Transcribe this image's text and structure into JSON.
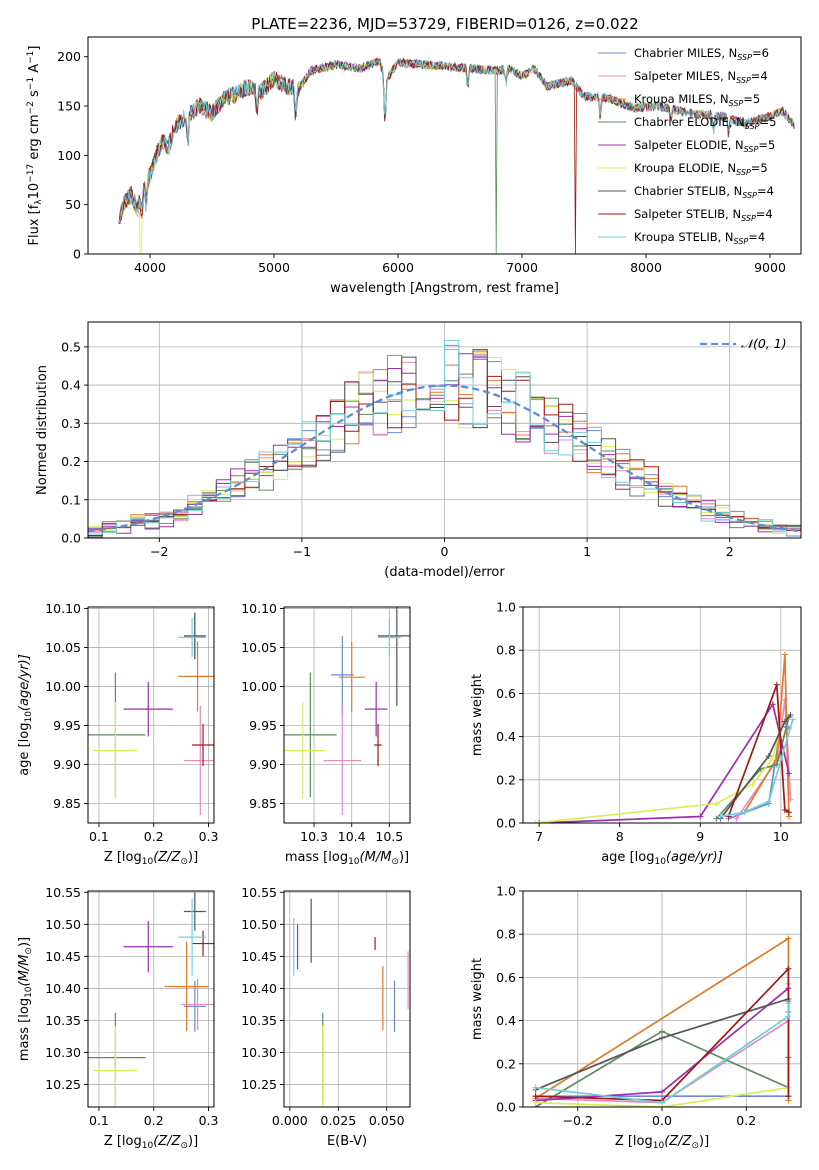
{
  "figure": {
    "title": "PLATE=2236, MJD=53729, FIBERID=0126, z=0.022"
  },
  "series_styles": [
    {
      "name": "Chabrier MILES",
      "n_ssp": "6",
      "color": "#6a8ad6"
    },
    {
      "name": "Salpeter MILES",
      "n_ssp": "4",
      "color": "#e889c0"
    },
    {
      "name": "Kroupa MILES",
      "n_ssp": "5",
      "color": "#e07b2a"
    },
    {
      "name": "Chabrier ELODIE",
      "n_ssp": "5",
      "color": "#5e8a60"
    },
    {
      "name": "Salpeter ELODIE",
      "n_ssp": "5",
      "color": "#9b2fb0"
    },
    {
      "name": "Kroupa ELODIE",
      "n_ssp": "5",
      "color": "#d8ee58"
    },
    {
      "name": "Chabrier STELIB",
      "n_ssp": "4",
      "color": "#555555"
    },
    {
      "name": "Salpeter STELIB",
      "n_ssp": "4",
      "color": "#a01818"
    },
    {
      "name": "Kroupa STELIB",
      "n_ssp": "4",
      "color": "#6fd0d8"
    }
  ],
  "chart_data": [
    {
      "id": "spectrum",
      "type": "line",
      "xlabel": "wavelength [Angstrom, rest frame]",
      "ylabel": "Flux [f",
      "ylabel_sub": "λ",
      "ylabel_mid": "10",
      "ylabel_sup1": "−17",
      "ylabel_end": " erg cm",
      "ylabel_sup2": "−2",
      "ylabel_s": " s",
      "ylabel_sup3": "−1",
      "ylabel_a": " A",
      "ylabel_sup4": "−1",
      "ylabel_close": "]",
      "xlim": [
        3500,
        9250
      ],
      "ylim": [
        0,
        220
      ],
      "xticks": [
        4000,
        5000,
        6000,
        7000,
        8000,
        9000
      ],
      "yticks": [
        0,
        50,
        100,
        150,
        200
      ],
      "anchors": [
        [
          3750,
          35
        ],
        [
          3800,
          55
        ],
        [
          3850,
          60
        ],
        [
          3900,
          45
        ],
        [
          3950,
          70
        ],
        [
          4000,
          80
        ],
        [
          4050,
          100
        ],
        [
          4100,
          115
        ],
        [
          4150,
          108
        ],
        [
          4200,
          130
        ],
        [
          4300,
          140
        ],
        [
          4400,
          150
        ],
        [
          4500,
          142
        ],
        [
          4600,
          158
        ],
        [
          4700,
          163
        ],
        [
          4800,
          170
        ],
        [
          4900,
          165
        ],
        [
          5000,
          178
        ],
        [
          5100,
          170
        ],
        [
          5200,
          168
        ],
        [
          5300,
          186
        ],
        [
          5500,
          192
        ],
        [
          5700,
          188
        ],
        [
          5850,
          196
        ],
        [
          5900,
          176
        ],
        [
          6000,
          194
        ],
        [
          6200,
          192
        ],
        [
          6400,
          190
        ],
        [
          6600,
          188
        ],
        [
          6800,
          186
        ],
        [
          6900,
          188
        ],
        [
          7000,
          180
        ],
        [
          7100,
          188
        ],
        [
          7200,
          170
        ],
        [
          7400,
          176
        ],
        [
          7500,
          160
        ],
        [
          7700,
          158
        ],
        [
          7900,
          148
        ],
        [
          8100,
          150
        ],
        [
          8400,
          142
        ],
        [
          8600,
          140
        ],
        [
          8800,
          132
        ],
        [
          9000,
          140
        ],
        [
          9100,
          145
        ],
        [
          9200,
          130
        ]
      ],
      "dips": [
        [
          3935,
          22
        ],
        [
          3970,
          25
        ],
        [
          4305,
          25
        ],
        [
          4862,
          20
        ],
        [
          5175,
          30
        ],
        [
          5895,
          45
        ],
        [
          6563,
          18
        ],
        [
          6870,
          15
        ],
        [
          7630,
          18
        ],
        [
          8200,
          10
        ],
        [
          8545,
          15
        ],
        [
          8665,
          15
        ]
      ],
      "drops": [
        [
          3925,
          5
        ],
        [
          6790,
          3
        ],
        [
          7430,
          7
        ]
      ]
    },
    {
      "id": "residuals",
      "type": "step-histogram",
      "xlabel": "(data-model)/error",
      "ylabel": "Normed distribution",
      "legend": "𝒩(0, 1)",
      "xlim": [
        -2.5,
        2.5
      ],
      "ylim": [
        0,
        0.565
      ],
      "xticks": [
        -2,
        -1,
        0,
        1,
        2
      ],
      "yticks": [
        0.0,
        0.1,
        0.2,
        0.3,
        0.4,
        0.5
      ],
      "bin_width": 0.1
    },
    {
      "id": "age-vs-Z",
      "type": "errorbar",
      "xlabel": "Z [log",
      "xlabel_sub": "10",
      "xlabel_end": "(Z/Z",
      "xlabel_sun": "⊙",
      "xlabel_close": ")]",
      "ylabel": "age  [log",
      "ylabel_sub": "10",
      "ylabel_end": "(age/yr)]",
      "xlim": [
        0.08,
        0.31
      ],
      "ylim": [
        9.825,
        10.102
      ],
      "xticks": [
        0.1,
        0.2,
        0.3
      ],
      "yticks": [
        9.85,
        9.9,
        9.95,
        10.0,
        10.05,
        10.1
      ],
      "points": [
        {
          "s": 0,
          "x": 0.275,
          "xe": 0.02,
          "y": 10.063,
          "ye": 0.027
        },
        {
          "s": 1,
          "x": 0.285,
          "xe": 0.03,
          "y": 9.905,
          "ye": 0.07
        },
        {
          "s": 2,
          "x": 0.28,
          "xe": 0.035,
          "y": 10.013,
          "ye": 0.045
        },
        {
          "s": 3,
          "x": 0.13,
          "xe": 0.055,
          "y": 9.938,
          "ye": 0.08
        },
        {
          "s": 4,
          "x": 0.19,
          "xe": 0.045,
          "y": 9.971,
          "ye": 0.035
        },
        {
          "s": 5,
          "x": 0.13,
          "xe": 0.04,
          "y": 9.918,
          "ye": 0.062
        },
        {
          "s": 6,
          "x": 0.275,
          "xe": 0.02,
          "y": 10.065,
          "ye": 0.03
        },
        {
          "s": 7,
          "x": 0.29,
          "xe": 0.02,
          "y": 9.925,
          "ye": 0.027
        },
        {
          "s": 8,
          "x": 0.27,
          "xe": 0.025,
          "y": 10.063,
          "ye": 0.025
        }
      ]
    },
    {
      "id": "age-vs-mass",
      "type": "errorbar",
      "xlabel": "mass [log",
      "xlabel_sub": "10",
      "xlabel_end": "(M/M",
      "xlabel_sun": "⊙",
      "xlabel_close": ")]",
      "xlim": [
        10.22,
        10.555
      ],
      "ylim": [
        9.825,
        10.102
      ],
      "xticks": [
        10.3,
        10.4,
        10.5
      ],
      "yticks": [
        9.85,
        9.9,
        9.95,
        10.0,
        10.05,
        10.1
      ],
      "points": [
        {
          "s": 0,
          "x": 10.375,
          "xe": 0.03,
          "y": 10.015,
          "ye": 0.05
        },
        {
          "s": 1,
          "x": 10.375,
          "xe": 0.05,
          "y": 9.905,
          "ye": 0.07
        },
        {
          "s": 2,
          "x": 10.4,
          "xe": 0.035,
          "y": 10.012,
          "ye": 0.045
        },
        {
          "s": 3,
          "x": 10.29,
          "xe": 0.07,
          "y": 9.938,
          "ye": 0.08
        },
        {
          "s": 4,
          "x": 10.465,
          "xe": 0.03,
          "y": 9.971,
          "ye": 0.035
        },
        {
          "s": 5,
          "x": 10.27,
          "xe": 0.06,
          "y": 9.918,
          "ye": 0.062
        },
        {
          "s": 6,
          "x": 10.52,
          "xe": 0.05,
          "y": 10.065,
          "ye": 0.09
        },
        {
          "s": 7,
          "x": 10.47,
          "xe": 0.01,
          "y": 9.925,
          "ye": 0.027
        },
        {
          "s": 8,
          "x": 10.5,
          "xe": 0.03,
          "y": 10.063,
          "ye": 0.025
        }
      ]
    },
    {
      "id": "massweight-vs-age",
      "type": "line",
      "xlabel": "age  [log",
      "xlabel_sub": "10",
      "xlabel_end": "(age/yr)]",
      "ylabel": "mass weight",
      "xlim": [
        6.8,
        10.25
      ],
      "ylim": [
        0,
        1.0
      ],
      "xticks": [
        7,
        8,
        9,
        10
      ],
      "yticks": [
        0.0,
        0.2,
        0.4,
        0.6,
        0.8,
        1.0
      ],
      "lines": [
        {
          "s": 0,
          "pts": [
            [
              9.35,
              0.02
            ],
            [
              9.85,
              0.09
            ],
            [
              10.0,
              0.45
            ],
            [
              10.1,
              0.44
            ]
          ]
        },
        {
          "s": 1,
          "pts": [
            [
              9.45,
              0.02
            ],
            [
              9.95,
              0.29
            ],
            [
              10.05,
              0.57
            ],
            [
              10.12,
              0.11
            ]
          ]
        },
        {
          "s": 2,
          "pts": [
            [
              9.55,
              0.05
            ],
            [
              9.95,
              0.3
            ],
            [
              10.05,
              0.78
            ],
            [
              10.1,
              0.03
            ]
          ]
        },
        {
          "s": 3,
          "pts": [
            [
              9.2,
              0.02
            ],
            [
              9.75,
              0.25
            ],
            [
              9.95,
              0.27
            ],
            [
              10.1,
              0.49
            ]
          ]
        },
        {
          "s": 4,
          "pts": [
            [
              7.0,
              0.0
            ],
            [
              9.0,
              0.03
            ],
            [
              9.9,
              0.55
            ],
            [
              10.1,
              0.23
            ]
          ]
        },
        {
          "s": 5,
          "pts": [
            [
              6.95,
              0.0
            ],
            [
              9.2,
              0.09
            ],
            [
              9.65,
              0.18
            ],
            [
              9.9,
              0.3
            ],
            [
              10.0,
              0.45
            ]
          ]
        },
        {
          "s": 6,
          "pts": [
            [
              9.25,
              0.02
            ],
            [
              9.85,
              0.31
            ],
            [
              10.05,
              0.47
            ],
            [
              10.12,
              0.5
            ]
          ]
        },
        {
          "s": 7,
          "pts": [
            [
              9.35,
              0.03
            ],
            [
              9.95,
              0.64
            ],
            [
              10.05,
              0.06
            ],
            [
              10.1,
              0.05
            ]
          ]
        },
        {
          "s": 8,
          "pts": [
            [
              9.25,
              0.03
            ],
            [
              9.55,
              0.05
            ],
            [
              9.85,
              0.1
            ],
            [
              10.15,
              0.48
            ]
          ]
        }
      ]
    },
    {
      "id": "mass-vs-Z",
      "type": "errorbar",
      "xlabel": "Z [log",
      "xlabel_sub": "10",
      "xlabel_end": "(Z/Z",
      "xlabel_sun": "⊙",
      "xlabel_close": ")]",
      "ylabel": "mass [log",
      "ylabel_sub": "10",
      "ylabel_end": "(M/M",
      "ylabel_sun": "⊙",
      "ylabel_close": ")]",
      "xlim": [
        0.08,
        0.31
      ],
      "ylim": [
        10.215,
        10.552
      ],
      "xticks": [
        0.1,
        0.2,
        0.3
      ],
      "yticks": [
        10.25,
        10.3,
        10.35,
        10.4,
        10.45,
        10.5,
        10.55
      ],
      "points": [
        {
          "s": 0,
          "x": 0.275,
          "xe": 0.02,
          "y": 10.372,
          "ye": 0.04
        },
        {
          "s": 1,
          "x": 0.28,
          "xe": 0.03,
          "y": 10.375,
          "ye": 0.04
        },
        {
          "s": 2,
          "x": 0.26,
          "xe": 0.04,
          "y": 10.403,
          "ye": 0.07
        },
        {
          "s": 3,
          "x": 0.13,
          "xe": 0.055,
          "y": 10.292,
          "ye": 0.07
        },
        {
          "s": 4,
          "x": 0.19,
          "xe": 0.045,
          "y": 10.465,
          "ye": 0.04
        },
        {
          "s": 5,
          "x": 0.13,
          "xe": 0.04,
          "y": 10.272,
          "ye": 0.07
        },
        {
          "s": 6,
          "x": 0.275,
          "xe": 0.02,
          "y": 10.52,
          "ye": 0.03
        },
        {
          "s": 7,
          "x": 0.29,
          "xe": 0.02,
          "y": 10.47,
          "ye": 0.02
        },
        {
          "s": 8,
          "x": 0.27,
          "xe": 0.025,
          "y": 10.48,
          "ye": 0.06
        }
      ]
    },
    {
      "id": "mass-vs-ebv",
      "type": "errorbar",
      "xlabel": "E(B-V)",
      "xlim": [
        -0.003,
        0.062
      ],
      "ylim": [
        10.215,
        10.552
      ],
      "xticks": [
        0.0,
        0.025,
        0.05
      ],
      "xtick_labels": [
        "0.000",
        "0.025",
        "0.050"
      ],
      "yticks": [
        10.25,
        10.3,
        10.35,
        10.4,
        10.45,
        10.5,
        10.55
      ],
      "points": [
        {
          "s": 0,
          "x": 0.054,
          "xe": 0,
          "y": 10.372,
          "ye": 0.04
        },
        {
          "s": 1,
          "x": 0.061,
          "xe": 0,
          "y": 10.413,
          "ye": 0.045
        },
        {
          "s": 2,
          "x": 0.048,
          "xe": 0,
          "y": 10.385,
          "ye": 0.05
        },
        {
          "s": 3,
          "x": 0.017,
          "xe": 0,
          "y": 10.292,
          "ye": 0.07
        },
        {
          "s": 4,
          "x": 0.004,
          "xe": 0,
          "y": 10.465,
          "ye": 0.035
        },
        {
          "s": 5,
          "x": 0.017,
          "xe": 0,
          "y": 10.272,
          "ye": 0.07
        },
        {
          "s": 6,
          "x": 0.011,
          "xe": 0,
          "y": 10.49,
          "ye": 0.05
        },
        {
          "s": 7,
          "x": 0.044,
          "xe": 0,
          "y": 10.47,
          "ye": 0.01
        },
        {
          "s": 8,
          "x": 0.002,
          "xe": 0,
          "y": 10.465,
          "ye": 0.045
        }
      ]
    },
    {
      "id": "massweight-vs-Z",
      "type": "line",
      "xlabel": "Z [log",
      "xlabel_sub": "10",
      "xlabel_end": "(Z/Z",
      "xlabel_sun": "⊙",
      "xlabel_close": ")]",
      "ylabel": "mass weight",
      "xlim": [
        -0.33,
        0.33
      ],
      "ylim": [
        0,
        1.0
      ],
      "xticks": [
        -0.2,
        0.0,
        0.2
      ],
      "xtick_labels": [
        "−0.2",
        "0.0",
        "0.2"
      ],
      "yticks": [
        0.0,
        0.2,
        0.4,
        0.6,
        0.8,
        1.0
      ],
      "lines": [
        {
          "s": 0,
          "pts": [
            [
              -0.3,
              0.05
            ],
            [
              0.0,
              0.05
            ],
            [
              0.3,
              0.05
            ],
            [
              0.3,
              0.44
            ]
          ]
        },
        {
          "s": 1,
          "pts": [
            [
              -0.3,
              0.04
            ],
            [
              0.0,
              0.02
            ],
            [
              0.3,
              0.4
            ],
            [
              0.3,
              0.57
            ]
          ]
        },
        {
          "s": 2,
          "pts": [
            [
              -0.3,
              0.04
            ],
            [
              0.3,
              0.78
            ],
            [
              0.3,
              0.03
            ]
          ]
        },
        {
          "s": 3,
          "pts": [
            [
              -0.3,
              0.0
            ],
            [
              0.0,
              0.35
            ],
            [
              0.3,
              0.09
            ],
            [
              0.3,
              0.49
            ]
          ]
        },
        {
          "s": 4,
          "pts": [
            [
              -0.3,
              0.03
            ],
            [
              0.0,
              0.07
            ],
            [
              0.3,
              0.55
            ],
            [
              0.3,
              0.23
            ]
          ]
        },
        {
          "s": 5,
          "pts": [
            [
              -0.3,
              0.02
            ],
            [
              0.0,
              0.0
            ],
            [
              0.3,
              0.09
            ]
          ]
        },
        {
          "s": 6,
          "pts": [
            [
              -0.3,
              0.08
            ],
            [
              0.0,
              0.32
            ],
            [
              0.3,
              0.5
            ]
          ]
        },
        {
          "s": 7,
          "pts": [
            [
              -0.3,
              0.05
            ],
            [
              0.0,
              0.03
            ],
            [
              0.3,
              0.64
            ],
            [
              0.3,
              0.05
            ]
          ]
        },
        {
          "s": 8,
          "pts": [
            [
              -0.3,
              0.09
            ],
            [
              0.0,
              0.02
            ],
            [
              0.3,
              0.42
            ],
            [
              0.3,
              0.48
            ]
          ]
        }
      ]
    }
  ]
}
